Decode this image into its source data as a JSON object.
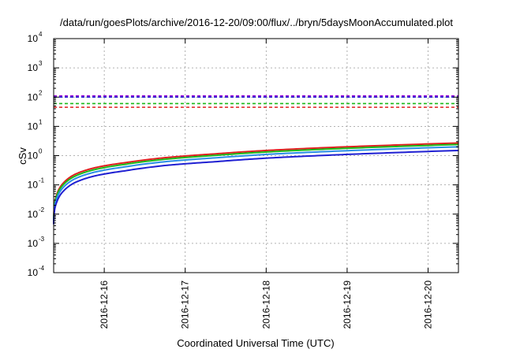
{
  "chart_data": {
    "type": "line",
    "title": "/data/run/goesPlots/archive/2016-12-20/09:00/flux/../bryn/5daysMoonAccumulated.plot",
    "xlabel": "Coordinated Universal Time (UTC)",
    "ylabel": "cSv",
    "y_scale": "log",
    "ylim": [
      0.0001,
      10000
    ],
    "xlim": [
      "2016-12-15T09:00",
      "2016-12-20T09:00"
    ],
    "grid": true,
    "legend": "none",
    "x_ticks": [
      {
        "value": "2016-12-16T00:00",
        "label": "2016-12-16"
      },
      {
        "value": "2016-12-17T00:00",
        "label": "2016-12-17"
      },
      {
        "value": "2016-12-18T00:00",
        "label": "2016-12-18"
      },
      {
        "value": "2016-12-19T00:00",
        "label": "2016-12-19"
      },
      {
        "value": "2016-12-20T00:00",
        "label": "2016-12-20"
      }
    ],
    "y_ticks": [
      {
        "value": 0.0001,
        "base": "10",
        "exp": "-4"
      },
      {
        "value": 0.001,
        "base": "10",
        "exp": "-3"
      },
      {
        "value": 0.01,
        "base": "10",
        "exp": "-2"
      },
      {
        "value": 0.1,
        "base": "10",
        "exp": "-1"
      },
      {
        "value": 1,
        "base": "10",
        "exp": "0"
      },
      {
        "value": 10,
        "base": "10",
        "exp": "1"
      },
      {
        "value": 100,
        "base": "10",
        "exp": "2"
      },
      {
        "value": 1000,
        "base": "10",
        "exp": "3"
      },
      {
        "value": 10000,
        "base": "10",
        "exp": "4"
      }
    ],
    "thresholds": [
      {
        "value": 110,
        "color": "#9400d3",
        "style": "dashed"
      },
      {
        "value": 100,
        "color": "#1f1fd2",
        "style": "dashed"
      },
      {
        "value": 60,
        "color": "#1aba1a",
        "style": "dashed"
      },
      {
        "value": 45,
        "color": "#e01e1e",
        "style": "dashed"
      }
    ],
    "series": [
      {
        "color": "#e01e1e",
        "x": [
          "2016-12-15T09:00",
          "2016-12-15T10:00",
          "2016-12-15T12:00",
          "2016-12-15T15:00",
          "2016-12-15T21:00",
          "2016-12-16T06:00",
          "2016-12-16T18:00",
          "2016-12-17T09:00",
          "2016-12-18T00:00",
          "2016-12-18T18:00",
          "2016-12-19T12:00",
          "2016-12-20T09:00"
        ],
        "y": [
          0.006,
          0.05,
          0.12,
          0.22,
          0.38,
          0.57,
          0.85,
          1.15,
          1.5,
          1.88,
          2.25,
          2.7
        ]
      },
      {
        "color": "#1aba1a",
        "x": [
          "2016-12-15T09:00",
          "2016-12-15T10:00",
          "2016-12-15T12:00",
          "2016-12-15T15:00",
          "2016-12-15T21:00",
          "2016-12-16T06:00",
          "2016-12-16T18:00",
          "2016-12-17T09:00",
          "2016-12-18T00:00",
          "2016-12-18T18:00",
          "2016-12-19T12:00",
          "2016-12-20T09:00"
        ],
        "y": [
          0.0055,
          0.045,
          0.105,
          0.19,
          0.33,
          0.5,
          0.75,
          1.02,
          1.33,
          1.67,
          2.0,
          2.4
        ]
      },
      {
        "color": "#2a8ee6",
        "x": [
          "2016-12-15T09:00",
          "2016-12-15T10:00",
          "2016-12-15T12:00",
          "2016-12-15T15:00",
          "2016-12-15T21:00",
          "2016-12-16T06:00",
          "2016-12-16T18:00",
          "2016-12-17T09:00",
          "2016-12-18T00:00",
          "2016-12-18T18:00",
          "2016-12-19T12:00",
          "2016-12-20T09:00"
        ],
        "y": [
          0.005,
          0.036,
          0.085,
          0.155,
          0.27,
          0.41,
          0.62,
          0.84,
          1.1,
          1.38,
          1.66,
          2.0
        ]
      },
      {
        "color": "#1f1fd2",
        "x": [
          "2016-12-15T09:00",
          "2016-12-15T10:00",
          "2016-12-15T12:00",
          "2016-12-15T15:00",
          "2016-12-15T21:00",
          "2016-12-16T06:00",
          "2016-12-16T18:00",
          "2016-12-17T09:00",
          "2016-12-18T00:00",
          "2016-12-18T18:00",
          "2016-12-19T12:00",
          "2016-12-20T09:00"
        ],
        "y": [
          0.0045,
          0.027,
          0.063,
          0.115,
          0.2,
          0.3,
          0.46,
          0.62,
          0.82,
          1.03,
          1.24,
          1.5
        ]
      }
    ]
  }
}
